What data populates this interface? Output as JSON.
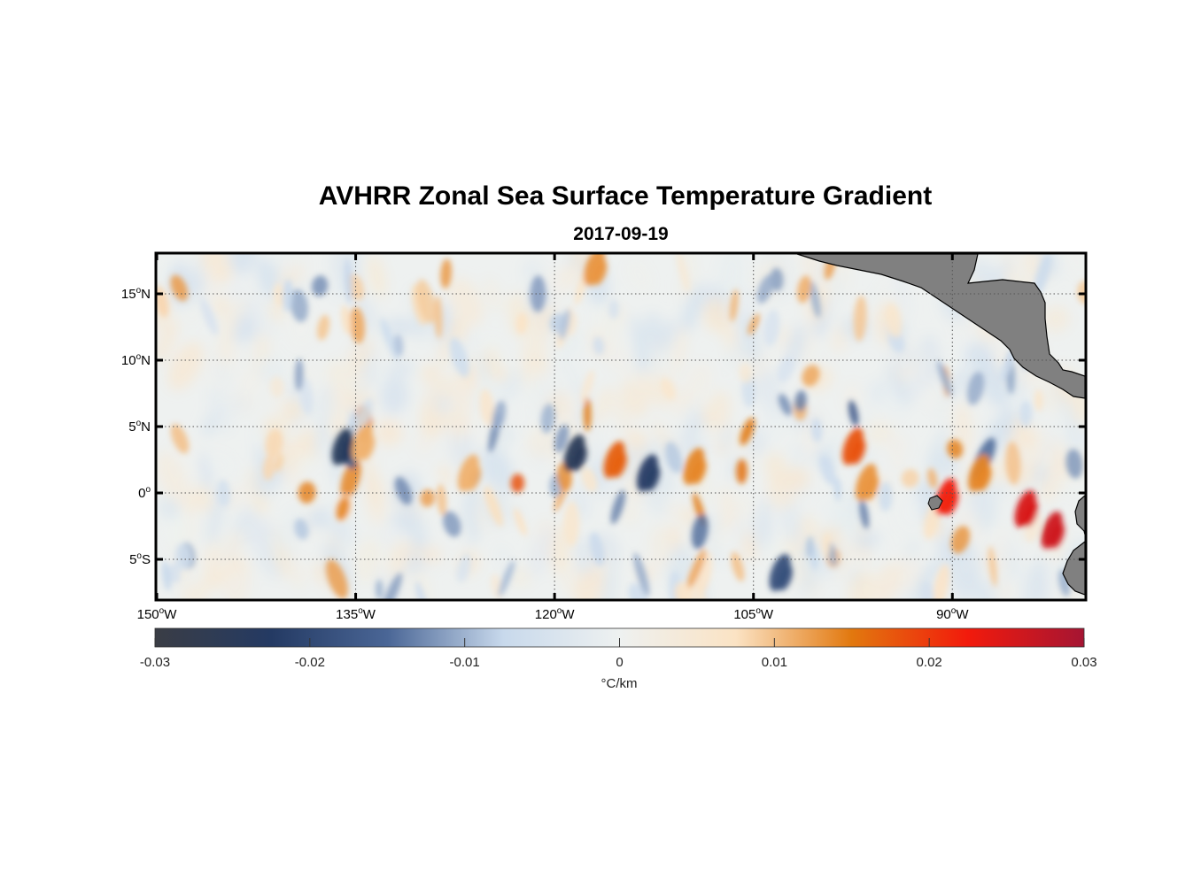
{
  "title": "AVHRR Zonal Sea Surface Temperature Gradient",
  "date": "2017-09-19",
  "map": {
    "lon_range": [
      -150,
      -80
    ],
    "lat_range": [
      -8,
      18
    ],
    "lat_ticks": [
      {
        "value": 15,
        "label": "15",
        "hemi": "N"
      },
      {
        "value": 10,
        "label": "10",
        "hemi": "N"
      },
      {
        "value": 5,
        "label": "5",
        "hemi": "N"
      },
      {
        "value": 0,
        "label": "0",
        "hemi": ""
      },
      {
        "value": -5,
        "label": "5",
        "hemi": "S"
      }
    ],
    "lon_ticks": [
      {
        "value": -150,
        "label": "150",
        "hemi": "W"
      },
      {
        "value": -135,
        "label": "135",
        "hemi": "W"
      },
      {
        "value": -120,
        "label": "120",
        "hemi": "W"
      },
      {
        "value": -105,
        "label": "105",
        "hemi": "W"
      },
      {
        "value": -90,
        "label": "90",
        "hemi": "W"
      }
    ],
    "land_color": "#808080",
    "degree_symbol": "o"
  },
  "colorbar": {
    "range": [
      -0.03,
      0.03
    ],
    "ticks": [
      "-0.03",
      "-0.02",
      "-0.01",
      "0",
      "0.01",
      "0.02",
      "0.03"
    ],
    "unit": "°C/km",
    "colors": [
      "#3a3d45",
      "#243a63",
      "#4a6696",
      "#c8d9ec",
      "#eef1f0",
      "#fbe3c4",
      "#e2780e",
      "#f21a0c",
      "#a51533"
    ]
  },
  "chart_data": {
    "type": "heatmap",
    "title": "AVHRR Zonal Sea Surface Temperature Gradient",
    "subtitle": "2017-09-19",
    "x_range": [
      -150,
      -80
    ],
    "y_range": [
      -8,
      18
    ],
    "color_range": [
      -0.03,
      0.03
    ],
    "colorbar_label": "°C/km",
    "features": [
      {
        "lon": -136,
        "lat": 3.5,
        "value": -0.024
      },
      {
        "lon": -134.5,
        "lat": 3.8,
        "value": 0.011
      },
      {
        "lon": -126.5,
        "lat": 1.5,
        "value": 0.011
      },
      {
        "lon": -118.5,
        "lat": 3,
        "value": -0.025
      },
      {
        "lon": -115.5,
        "lat": 2.5,
        "value": 0.017
      },
      {
        "lon": -113,
        "lat": 1.5,
        "value": -0.022
      },
      {
        "lon": -109.5,
        "lat": 2,
        "value": 0.014
      },
      {
        "lon": -97.5,
        "lat": 3.5,
        "value": 0.018
      },
      {
        "lon": -96.5,
        "lat": 0.8,
        "value": 0.013
      },
      {
        "lon": -90.5,
        "lat": -0.3,
        "value": 0.022
      },
      {
        "lon": -84.5,
        "lat": -1.2,
        "value": 0.025
      },
      {
        "lon": -82.5,
        "lat": -2.8,
        "value": 0.026
      },
      {
        "lon": -88,
        "lat": 1.5,
        "value": 0.014
      },
      {
        "lon": -103,
        "lat": -6,
        "value": -0.019
      },
      {
        "lon": -117,
        "lat": 17,
        "value": 0.013
      }
    ]
  }
}
